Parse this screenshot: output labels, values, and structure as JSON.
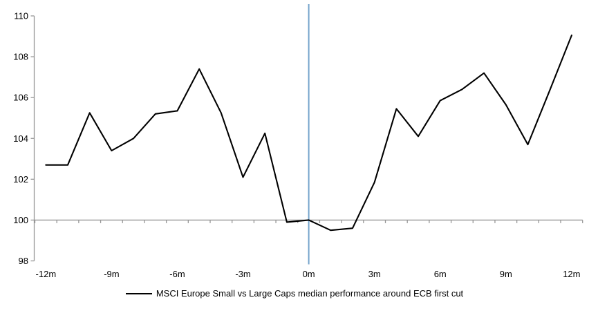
{
  "chart": {
    "background": "#FFFFFF",
    "axis_color": "#969696",
    "text_color": "#000000",
    "series_color": "#000000",
    "event_line_color": "#74A4CC"
  },
  "chart_data": {
    "type": "line",
    "title": "",
    "xlabel": "",
    "ylabel": "",
    "legend": "MSCI Europe Small vs Large Caps median performance around ECB first cut",
    "legend_position": "bottom-center",
    "grid": "off",
    "x": [
      -12,
      -11,
      -10,
      -9,
      -8,
      -7,
      -6,
      -5,
      -4,
      -3,
      -2,
      -1,
      0,
      1,
      2,
      3,
      4,
      5,
      6,
      7,
      8,
      9,
      10,
      11,
      12
    ],
    "series": [
      {
        "name": "MSCI Europe Small vs Large Caps median performance around ECB first cut",
        "color": "#000000",
        "values": [
          102.7,
          102.7,
          105.25,
          103.4,
          104.0,
          105.2,
          105.35,
          107.4,
          105.25,
          102.1,
          104.25,
          99.9,
          100.0,
          99.5,
          99.6,
          101.85,
          105.45,
          104.1,
          105.85,
          106.4,
          107.2,
          105.65,
          103.7,
          106.35,
          109.05
        ]
      }
    ],
    "x_tick_labels": [
      "-12m",
      "-9m",
      "-6m",
      "-3m",
      "0m",
      "3m",
      "6m",
      "9m",
      "12m"
    ],
    "x_tick_positions": [
      -12,
      -9,
      -6,
      -3,
      0,
      3,
      6,
      9,
      12
    ],
    "y_ticks": [
      "98",
      "100",
      "102",
      "104",
      "106",
      "108",
      "110"
    ],
    "y_tick_values": [
      98,
      100,
      102,
      104,
      106,
      108,
      110
    ],
    "ylim": [
      98,
      110
    ],
    "baseline": 100,
    "event_line_x": 0
  }
}
